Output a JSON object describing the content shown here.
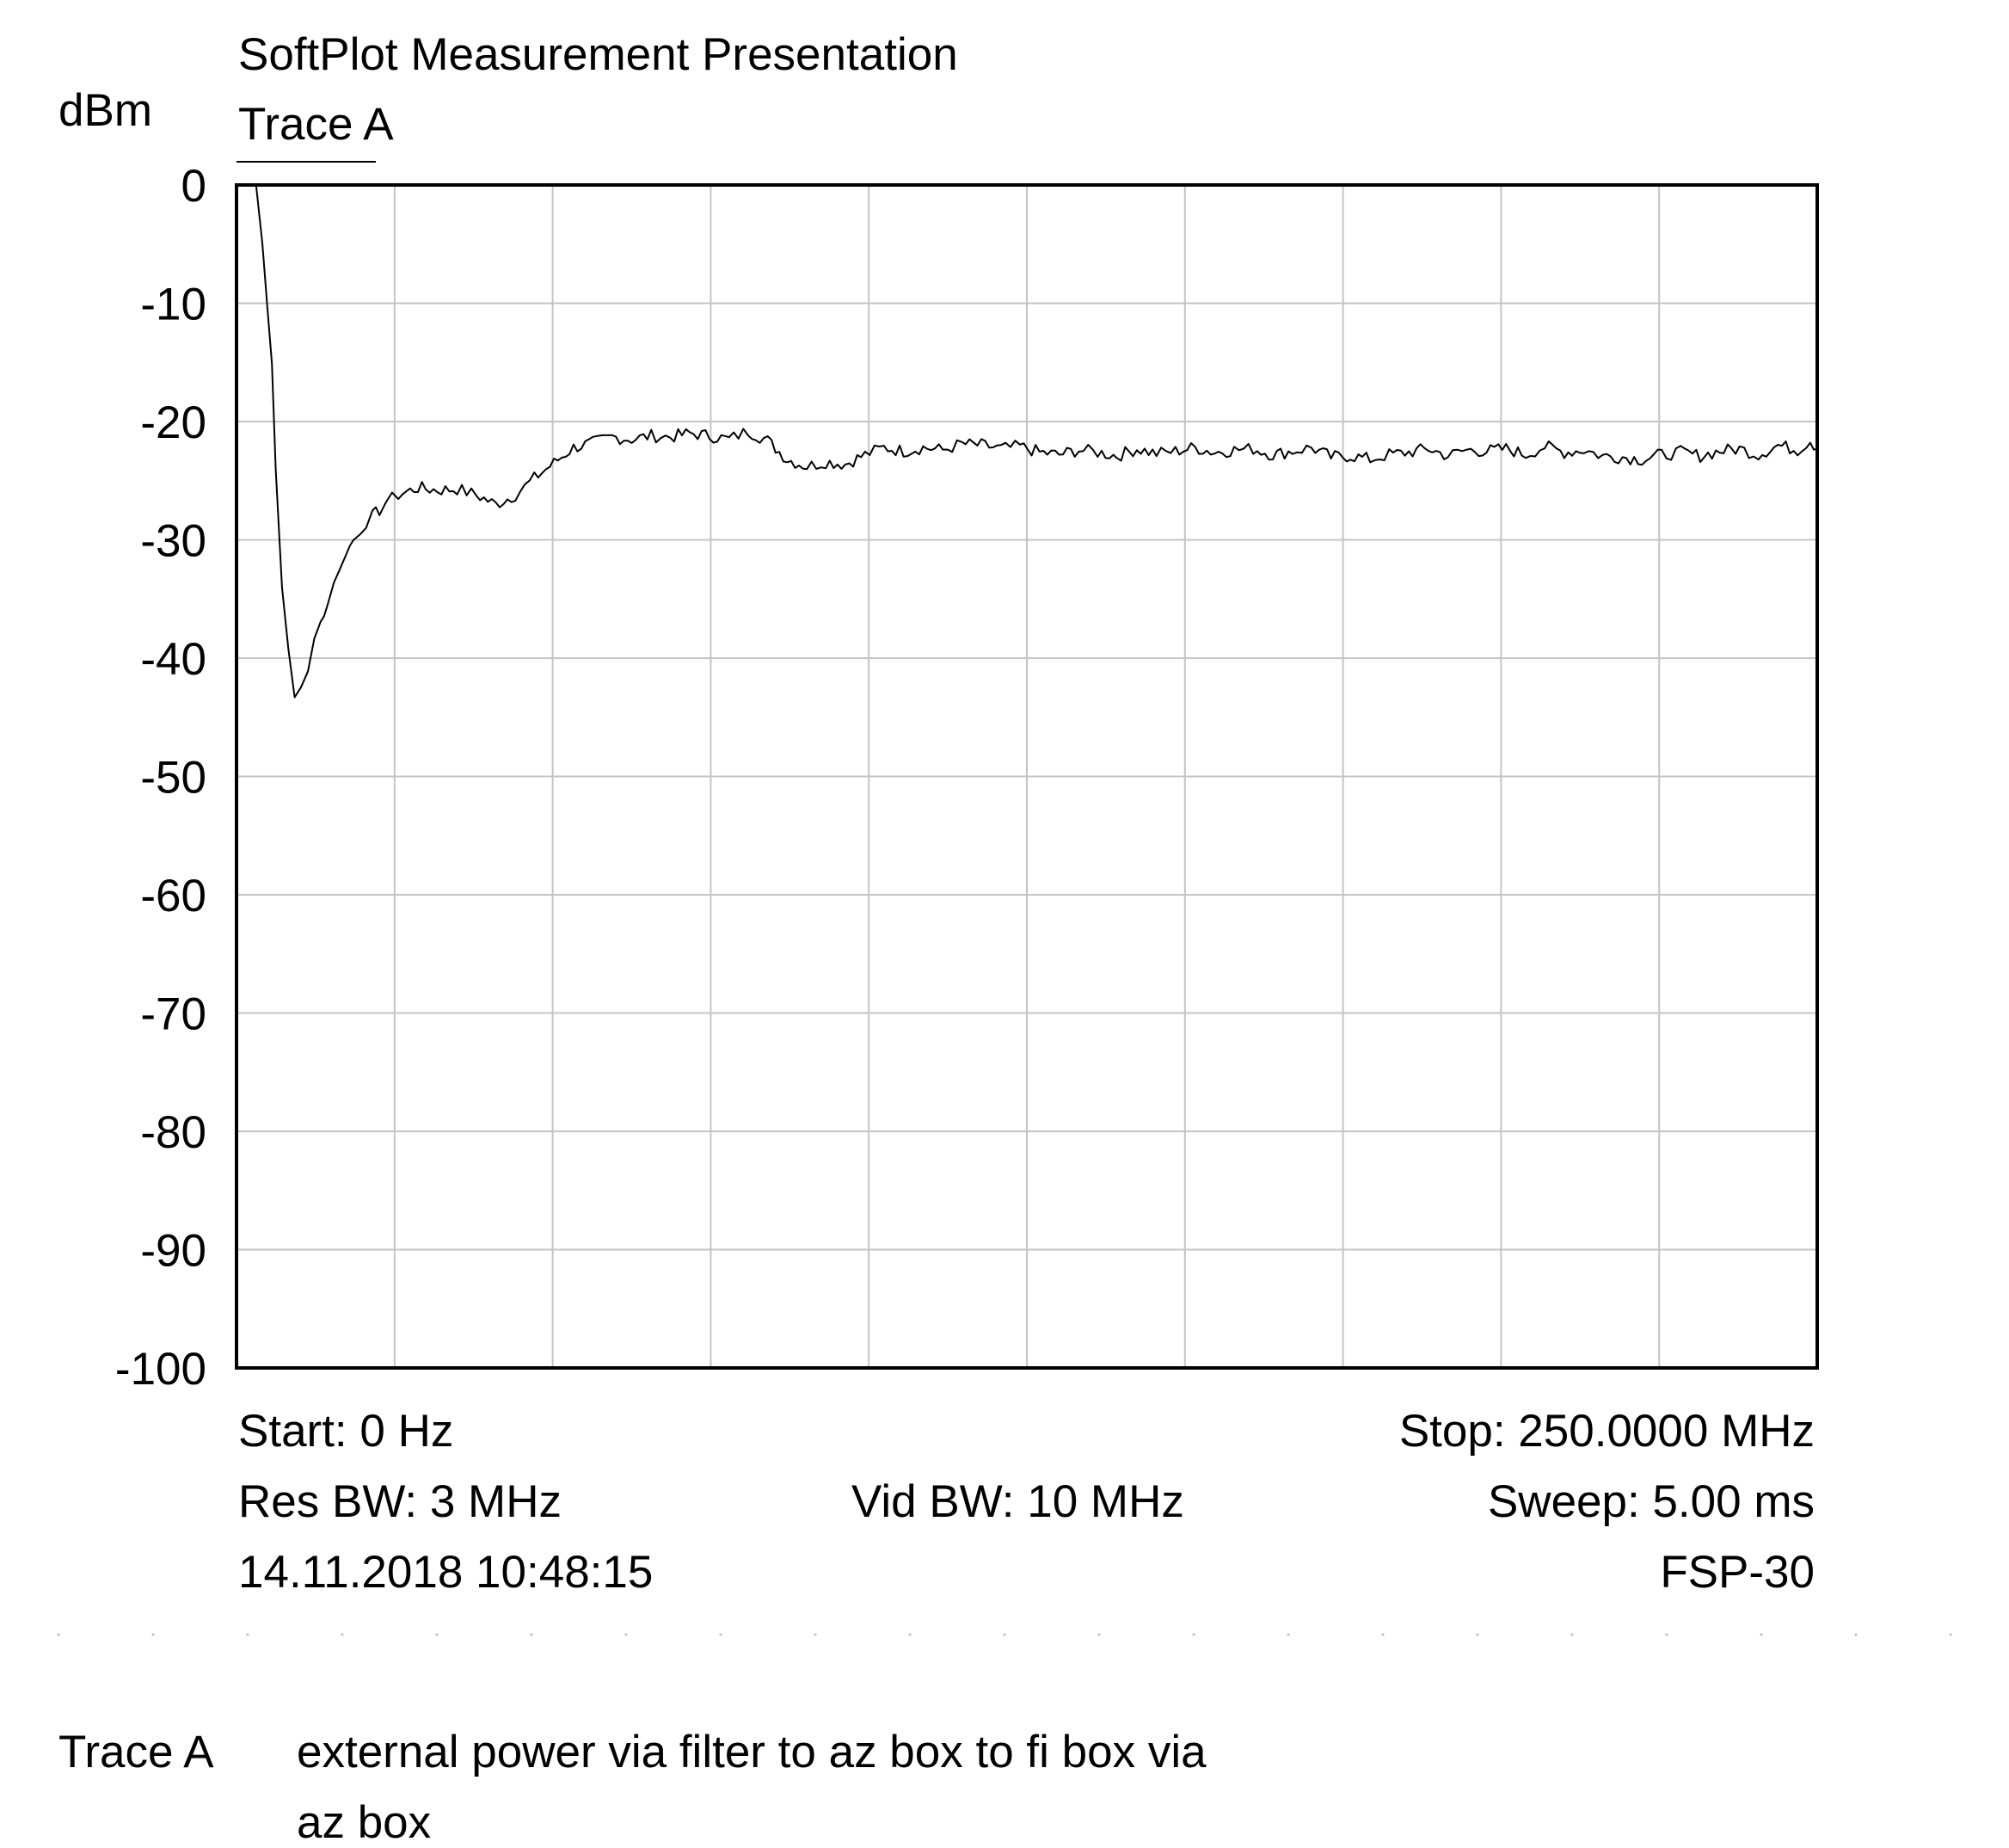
{
  "header": {
    "app_title": "SoftPlot Measurement Presentation",
    "trace_label": "Trace A"
  },
  "chart_data": {
    "type": "line",
    "ylabel": "dBm",
    "ylim": [
      -100,
      0
    ],
    "xlim": [
      0,
      250
    ],
    "x_unit": "MHz",
    "grid": true,
    "y_ticks": [
      "0",
      "-10",
      "-20",
      "-30",
      "-40",
      "-50",
      "-60",
      "-70",
      "-80",
      "-90",
      "-100"
    ],
    "series": [
      {
        "name": "Trace A",
        "color": "#000000",
        "x": [
          0,
          3.1,
          4.1,
          5.6,
          6.2,
          7.2,
          8.2,
          9.2,
          10.2,
          11.3,
          12.3,
          13.3,
          14.4,
          15.4,
          16.4,
          17.4,
          18.5,
          19.5,
          20.5,
          21.5,
          22.6,
          23.6,
          24.6,
          25.6,
          28.7,
          31.8,
          34.9,
          37.9,
          41,
          44.1,
          47.1,
          50.2,
          53.3,
          56.4,
          59.4,
          62.5,
          65.6,
          68.6,
          71.7,
          74.8,
          77.9,
          80.9,
          84,
          87.1,
          90.2,
          93.2,
          96.3,
          99.4,
          102.4,
          105.5,
          108.6,
          111.7,
          114.7,
          117.8,
          120.9,
          123.9,
          127,
          130.1,
          133.2,
          136.2,
          139.3,
          142.4,
          145.5,
          148.5,
          151.6,
          154.7,
          157.8,
          160.8,
          163.9,
          167,
          170,
          173.1,
          176.2,
          179.3,
          182.3,
          185.4,
          188.5,
          191.6,
          194.6,
          197.7,
          200.8,
          203.9,
          206.9,
          210,
          213.1,
          216.1,
          219.2,
          222.3,
          225.4,
          228.4,
          231.5,
          234.6,
          237.7,
          240.7,
          243.8,
          246.9,
          248.9,
          250
        ],
        "y": [
          0,
          0,
          -5,
          -15,
          -24,
          -34,
          -39,
          -43.5,
          -42.5,
          -41,
          -38.5,
          -37,
          -35.5,
          -33.5,
          -32.5,
          -31,
          -30,
          -29.2,
          -28.5,
          -28,
          -27.5,
          -26.8,
          -26.5,
          -26.2,
          -25.6,
          -25.8,
          -25.7,
          -26.2,
          -27,
          -26.2,
          -24.8,
          -23.5,
          -22.2,
          -21.8,
          -21.3,
          -21.5,
          -21.2,
          -21.3,
          -21.0,
          -21.2,
          -21.5,
          -20.8,
          -21.6,
          -23.2,
          -23.8,
          -23.4,
          -23.6,
          -22.8,
          -22.2,
          -22.5,
          -22.2,
          -22.4,
          -21.9,
          -22.0,
          -22.3,
          -22.1,
          -22.6,
          -22.8,
          -22.4,
          -22.6,
          -22.9,
          -22.3,
          -22.7,
          -22.5,
          -22.2,
          -22.6,
          -22.4,
          -22.3,
          -22.8,
          -22.5,
          -22.2,
          -23.0,
          -22.9,
          -23.2,
          -22.8,
          -22.6,
          -22.3,
          -22.9,
          -22.4,
          -22.5,
          -22.3,
          -22.8,
          -22.1,
          -22.6,
          -22.4,
          -22.9,
          -23.0,
          -23.2,
          -22.8,
          -22.6,
          -22.9,
          -22.5,
          -22.3,
          -22.8,
          -22.0,
          -22.4,
          -21.6,
          -22.3
        ]
      }
    ]
  },
  "info": {
    "start": "Start: 0 Hz",
    "stop": "Stop: 250.0000 MHz",
    "res_bw": "Res BW: 3 MHz",
    "vid_bw": "Vid BW: 10 MHz",
    "sweep": "Sweep: 5.00 ms",
    "datetime": "14.11.2018 10:48:15",
    "instrument": "FSP-30"
  },
  "note": {
    "trace_label": "Trace A",
    "line1": "external power via filter to az box to fi box via",
    "line2": "az box"
  }
}
